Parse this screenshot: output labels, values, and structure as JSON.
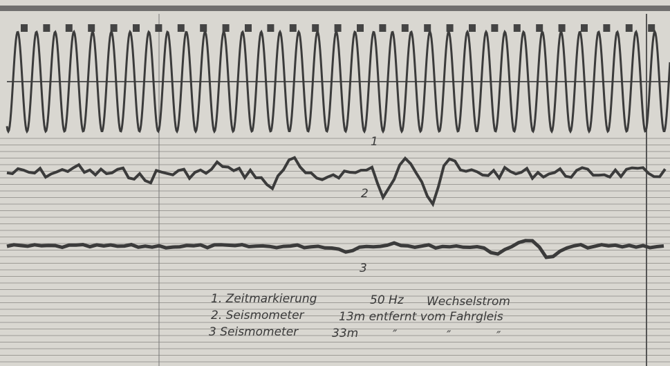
{
  "traces": [
    {
      "label": "1"
    },
    {
      "label": "2"
    },
    {
      "label": "3"
    }
  ],
  "legend": {
    "rows": [
      [
        "1. Zeitmarkierung",
        "50 Hz",
        "Wechselstrom"
      ],
      [
        "2. Seismometer",
        "13m entfernt vom Fahrgleis"
      ],
      [
        "3 Seismometer",
        "33m",
        "″",
        "″",
        "″"
      ]
    ]
  }
}
